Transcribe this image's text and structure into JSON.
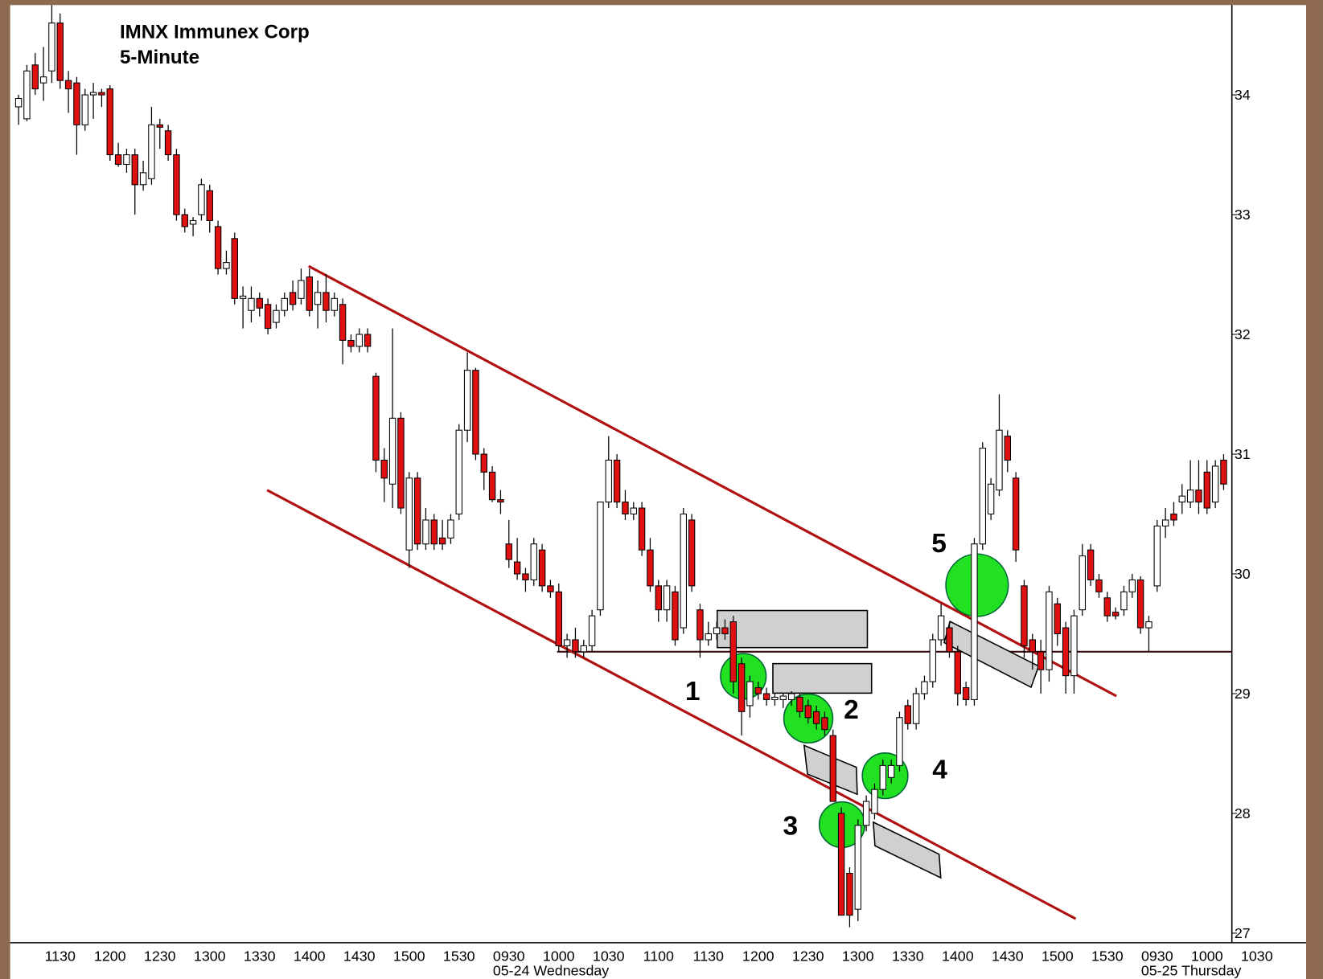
{
  "chart_data": {
    "type": "candlestick",
    "title": "IMNX Immunex Corp",
    "subtitle": "5-Minute",
    "up_color": "#ffffff",
    "down_color": "#e01010",
    "trendline_color": "#b01010",
    "hline_color": "#3a0a0a",
    "ylim": [
      26.92,
      34.75
    ],
    "yticks": [
      27,
      28,
      29,
      30,
      31,
      32,
      33,
      34
    ],
    "categories": [
      null,
      null,
      null,
      null,
      null,
      "1130",
      null,
      null,
      null,
      null,
      null,
      "1200",
      null,
      null,
      null,
      null,
      null,
      "1230",
      null,
      null,
      null,
      null,
      null,
      "1300",
      null,
      null,
      null,
      null,
      null,
      "1330",
      null,
      null,
      null,
      null,
      null,
      "1400",
      null,
      null,
      null,
      null,
      null,
      "1430",
      null,
      null,
      null,
      null,
      null,
      "1500",
      null,
      null,
      null,
      null,
      null,
      "1530",
      null,
      null,
      null,
      null,
      null,
      "0930",
      null,
      null,
      null,
      null,
      null,
      "1000",
      null,
      null,
      null,
      null,
      null,
      "1030",
      null,
      null,
      null,
      null,
      null,
      "1100",
      null,
      null,
      null,
      null,
      null,
      "1130",
      null,
      null,
      null,
      null,
      null,
      "1200",
      null,
      null,
      null,
      null,
      null,
      "1230",
      null,
      null,
      null,
      null,
      null,
      "1300",
      null,
      null,
      null,
      null,
      null,
      "1330",
      null,
      null,
      null,
      null,
      null,
      "1400",
      null,
      null,
      null,
      null,
      null,
      "1430",
      null,
      null,
      null,
      null,
      null,
      "1500",
      null,
      null,
      null,
      null,
      null,
      "1530",
      null,
      null,
      null,
      null,
      null,
      "0930",
      null,
      null,
      null,
      null,
      null,
      "1000",
      null,
      null,
      null,
      null,
      null,
      "1030"
    ],
    "date_labels": [
      {
        "index": 59,
        "text": "05-24 Wednesday"
      },
      {
        "index": 137,
        "text": "05-25 Thursday"
      }
    ],
    "ohlc": [
      [
        33.9,
        34.0,
        33.75,
        33.97
      ],
      [
        33.8,
        34.25,
        33.78,
        34.2
      ],
      [
        34.25,
        34.35,
        34.0,
        34.05
      ],
      [
        34.1,
        34.4,
        33.95,
        34.15
      ],
      [
        34.2,
        34.75,
        34.1,
        34.6
      ],
      [
        34.6,
        34.68,
        34.05,
        34.12
      ],
      [
        34.12,
        34.2,
        33.85,
        34.05
      ],
      [
        34.1,
        34.15,
        33.5,
        33.75
      ],
      [
        33.75,
        34.05,
        33.7,
        34.0
      ],
      [
        34.0,
        34.1,
        33.8,
        34.02
      ],
      [
        34.02,
        34.05,
        33.9,
        34.0
      ],
      [
        34.05,
        34.08,
        33.45,
        33.5
      ],
      [
        33.5,
        33.6,
        33.4,
        33.42
      ],
      [
        33.42,
        33.55,
        33.35,
        33.5
      ],
      [
        33.5,
        33.55,
        33.0,
        33.25
      ],
      [
        33.25,
        33.45,
        33.2,
        33.35
      ],
      [
        33.3,
        33.9,
        33.25,
        33.75
      ],
      [
        33.75,
        33.8,
        33.55,
        33.73
      ],
      [
        33.7,
        33.75,
        33.45,
        33.5
      ],
      [
        33.5,
        33.55,
        32.95,
        33.0
      ],
      [
        33.0,
        33.05,
        32.85,
        32.9
      ],
      [
        32.92,
        32.98,
        32.82,
        32.95
      ],
      [
        33.0,
        33.3,
        32.95,
        33.25
      ],
      [
        33.2,
        33.25,
        32.85,
        32.95
      ],
      [
        32.9,
        32.95,
        32.5,
        32.55
      ],
      [
        32.55,
        32.7,
        32.5,
        32.6
      ],
      [
        32.8,
        32.85,
        32.25,
        32.3
      ],
      [
        32.3,
        32.4,
        32.05,
        32.32
      ],
      [
        32.2,
        32.4,
        32.1,
        32.3
      ],
      [
        32.3,
        32.35,
        32.15,
        32.22
      ],
      [
        32.25,
        32.3,
        32.0,
        32.05
      ],
      [
        32.1,
        32.25,
        32.05,
        32.2
      ],
      [
        32.2,
        32.35,
        32.15,
        32.3
      ],
      [
        32.35,
        32.45,
        32.2,
        32.25
      ],
      [
        32.3,
        32.55,
        32.25,
        32.45
      ],
      [
        32.48,
        32.55,
        32.15,
        32.2
      ],
      [
        32.25,
        32.45,
        32.05,
        32.35
      ],
      [
        32.35,
        32.5,
        32.1,
        32.2
      ],
      [
        32.2,
        32.35,
        32.15,
        32.3
      ],
      [
        32.25,
        32.3,
        31.75,
        31.95
      ],
      [
        31.95,
        32.0,
        31.85,
        31.9
      ],
      [
        31.9,
        32.05,
        31.85,
        32.0
      ],
      [
        32.0,
        32.05,
        31.85,
        31.9
      ],
      [
        31.65,
        31.68,
        30.85,
        30.95
      ],
      [
        30.95,
        31.05,
        30.6,
        30.8
      ],
      [
        30.75,
        32.05,
        30.55,
        31.3
      ],
      [
        31.3,
        31.35,
        30.5,
        30.55
      ],
      [
        30.2,
        30.85,
        30.05,
        30.8
      ],
      [
        30.8,
        30.85,
        30.2,
        30.25
      ],
      [
        30.25,
        30.55,
        30.2,
        30.45
      ],
      [
        30.45,
        30.5,
        30.2,
        30.25
      ],
      [
        30.3,
        30.45,
        30.2,
        30.25
      ],
      [
        30.3,
        30.5,
        30.25,
        30.45
      ],
      [
        30.5,
        31.25,
        30.45,
        31.2
      ],
      [
        31.2,
        31.85,
        31.1,
        31.7
      ],
      [
        31.7,
        31.72,
        30.95,
        31.0
      ],
      [
        31.0,
        31.05,
        30.7,
        30.85
      ],
      [
        30.85,
        30.9,
        30.6,
        30.62
      ],
      [
        30.62,
        30.7,
        30.5,
        30.6
      ],
      [
        30.25,
        30.45,
        30.05,
        30.12
      ],
      [
        30.1,
        30.3,
        29.95,
        30.0
      ],
      [
        30.0,
        30.05,
        29.85,
        29.95
      ],
      [
        29.95,
        30.3,
        29.9,
        30.25
      ],
      [
        30.2,
        30.25,
        29.85,
        29.9
      ],
      [
        29.9,
        29.95,
        29.8,
        29.85
      ],
      [
        29.85,
        29.92,
        29.35,
        29.4
      ],
      [
        29.4,
        29.5,
        29.3,
        29.45
      ],
      [
        29.45,
        29.55,
        29.3,
        29.35
      ],
      [
        29.35,
        29.45,
        29.3,
        29.4
      ],
      [
        29.4,
        29.7,
        29.35,
        29.65
      ],
      [
        29.7,
        30.6,
        29.65,
        30.6
      ],
      [
        30.6,
        31.15,
        30.55,
        30.95
      ],
      [
        30.95,
        31.0,
        30.55,
        30.6
      ],
      [
        30.6,
        30.7,
        30.45,
        30.5
      ],
      [
        30.5,
        30.6,
        30.45,
        30.55
      ],
      [
        30.55,
        30.6,
        30.15,
        30.2
      ],
      [
        30.2,
        30.3,
        29.85,
        29.9
      ],
      [
        29.9,
        29.95,
        29.6,
        29.7
      ],
      [
        29.7,
        29.95,
        29.6,
        29.9
      ],
      [
        29.85,
        29.9,
        29.4,
        29.45
      ],
      [
        29.55,
        30.55,
        29.5,
        30.5
      ],
      [
        30.45,
        30.5,
        29.85,
        29.9
      ],
      [
        29.7,
        29.75,
        29.3,
        29.45
      ],
      [
        29.45,
        29.6,
        29.4,
        29.5
      ],
      [
        29.5,
        29.6,
        29.45,
        29.55
      ],
      [
        29.55,
        29.62,
        29.45,
        29.5
      ],
      [
        29.6,
        29.65,
        29.0,
        29.1
      ],
      [
        29.25,
        29.3,
        28.65,
        28.85
      ],
      [
        28.9,
        29.15,
        28.8,
        29.1
      ],
      [
        29.05,
        29.1,
        28.95,
        29.0
      ],
      [
        29.0,
        29.05,
        28.9,
        28.95
      ],
      [
        28.95,
        29.0,
        28.9,
        28.97
      ],
      [
        28.95,
        29.0,
        28.88,
        28.98
      ],
      [
        28.95,
        29.02,
        28.9,
        29.0
      ],
      [
        28.97,
        29.0,
        28.8,
        28.85
      ],
      [
        28.9,
        28.95,
        28.75,
        28.8
      ],
      [
        28.85,
        28.9,
        28.7,
        28.75
      ],
      [
        28.8,
        28.85,
        28.65,
        28.7
      ],
      [
        28.65,
        28.7,
        28.1,
        28.1
      ],
      [
        28.0,
        28.05,
        27.15,
        27.15
      ],
      [
        27.5,
        27.55,
        27.05,
        27.15
      ],
      [
        27.2,
        27.95,
        27.1,
        27.9
      ],
      [
        27.9,
        28.15,
        27.85,
        28.1
      ],
      [
        28.0,
        28.25,
        27.95,
        28.2
      ],
      [
        28.2,
        28.45,
        28.15,
        28.4
      ],
      [
        28.3,
        28.45,
        28.25,
        28.4
      ],
      [
        28.4,
        28.85,
        28.35,
        28.8
      ],
      [
        28.9,
        28.95,
        28.7,
        28.75
      ],
      [
        28.75,
        29.05,
        28.7,
        29.0
      ],
      [
        29.0,
        29.15,
        28.95,
        29.1
      ],
      [
        29.1,
        29.5,
        29.05,
        29.45
      ],
      [
        29.45,
        29.75,
        29.4,
        29.65
      ],
      [
        29.55,
        29.6,
        29.3,
        29.35
      ],
      [
        29.35,
        29.4,
        28.9,
        29.0
      ],
      [
        29.05,
        29.1,
        28.9,
        28.95
      ],
      [
        28.95,
        30.3,
        28.9,
        30.25
      ],
      [
        30.25,
        31.1,
        30.2,
        31.05
      ],
      [
        30.5,
        30.8,
        30.45,
        30.75
      ],
      [
        30.7,
        31.5,
        30.65,
        31.2
      ],
      [
        31.15,
        31.2,
        30.85,
        30.95
      ],
      [
        30.8,
        30.85,
        30.1,
        30.2
      ],
      [
        29.9,
        29.95,
        29.3,
        29.4
      ],
      [
        29.45,
        29.5,
        29.2,
        29.35
      ],
      [
        29.35,
        29.45,
        29.0,
        29.2
      ],
      [
        29.2,
        29.9,
        29.1,
        29.85
      ],
      [
        29.75,
        29.8,
        29.4,
        29.5
      ],
      [
        29.55,
        29.6,
        29.0,
        29.15
      ],
      [
        29.15,
        29.7,
        29.0,
        29.65
      ],
      [
        29.7,
        30.25,
        29.65,
        30.15
      ],
      [
        30.2,
        30.25,
        29.9,
        29.95
      ],
      [
        29.95,
        30.0,
        29.8,
        29.85
      ],
      [
        29.8,
        29.85,
        29.6,
        29.65
      ],
      [
        29.68,
        29.72,
        29.62,
        29.65
      ],
      [
        29.7,
        29.9,
        29.65,
        29.85
      ],
      [
        29.85,
        30.0,
        29.8,
        29.95
      ],
      [
        29.95,
        29.98,
        29.5,
        29.55
      ],
      [
        29.55,
        29.65,
        29.35,
        29.6
      ],
      [
        29.9,
        30.45,
        29.85,
        30.4
      ],
      [
        30.4,
        30.55,
        30.3,
        30.45
      ],
      [
        30.5,
        30.6,
        30.4,
        30.45
      ],
      [
        30.6,
        30.75,
        30.5,
        30.65
      ],
      [
        30.6,
        30.95,
        30.55,
        30.7
      ],
      [
        30.7,
        30.95,
        30.5,
        30.6
      ],
      [
        30.85,
        30.95,
        30.5,
        30.55
      ],
      [
        30.6,
        30.95,
        30.55,
        30.9
      ],
      [
        30.95,
        31.0,
        30.7,
        30.75
      ],
      null,
      null,
      null,
      null
    ],
    "trendlines": [
      {
        "x": [
          34.9,
          132.1
        ],
        "y": [
          32.57,
          28.98
        ]
      },
      {
        "x": [
          29.9,
          127.2
        ],
        "y": [
          30.7,
          27.12
        ]
      }
    ],
    "hline": {
      "x": [
        64.8,
        146
      ],
      "y": 29.35
    },
    "annotations": [
      "1",
      "2",
      "3",
      "4",
      "5"
    ]
  }
}
